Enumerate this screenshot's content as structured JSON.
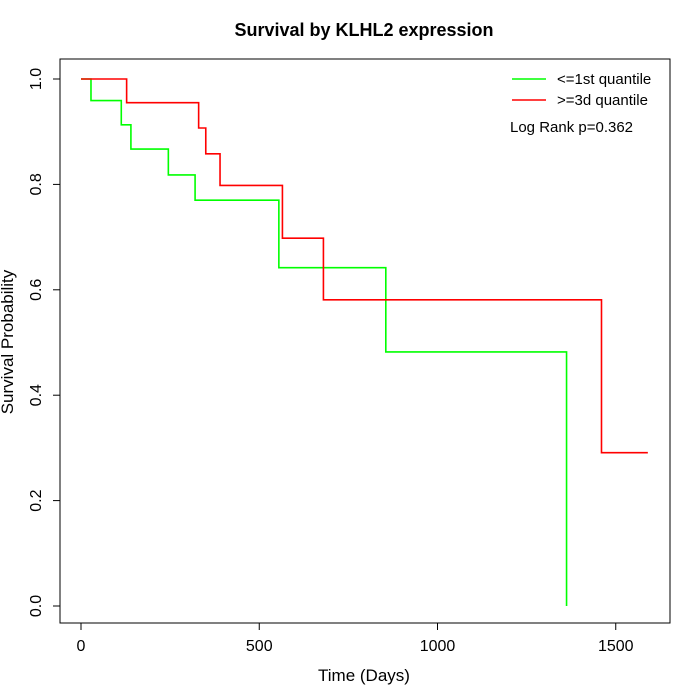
{
  "chart_data": {
    "type": "line",
    "step": true,
    "title": "Survival by KLHL2 expression",
    "xlabel": "Time (Days)",
    "ylabel": "Survival Probability",
    "xlim": [
      0,
      1650
    ],
    "ylim": [
      0,
      1.05
    ],
    "xticks": [
      0,
      500,
      1000,
      1500
    ],
    "yticks": [
      0.0,
      0.2,
      0.4,
      0.6,
      0.8,
      1.0
    ],
    "xtick_labels": [
      "0",
      "500",
      "1000",
      "1500"
    ],
    "ytick_labels": [
      "0.0",
      "0.2",
      "0.4",
      "0.6",
      "0.8",
      "1.0"
    ],
    "legend_position": "top-right",
    "annotation": "Log Rank p=0.362",
    "series": [
      {
        "name": "<=1st quantile",
        "color": "#00ff00",
        "x": [
          0,
          28,
          113,
          140,
          245,
          320,
          555,
          855,
          1360,
          1362
        ],
        "y": [
          1.0,
          0.959,
          0.913,
          0.867,
          0.818,
          0.77,
          0.642,
          0.482,
          0.482,
          0.0
        ]
      },
      {
        "name": ">=3d quantile",
        "color": "#ff0000",
        "x": [
          0,
          128,
          330,
          350,
          390,
          565,
          680,
          1460,
          1590
        ],
        "y": [
          1.0,
          0.955,
          0.907,
          0.858,
          0.798,
          0.698,
          0.581,
          0.291,
          0.291
        ]
      }
    ]
  }
}
